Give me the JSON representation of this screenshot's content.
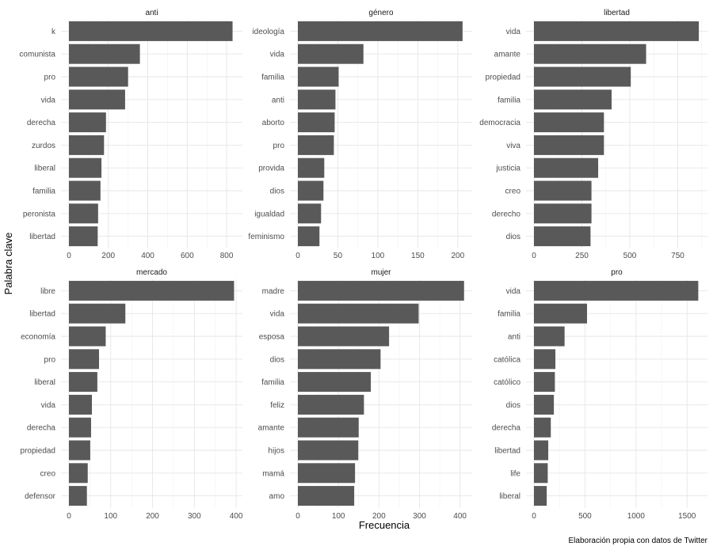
{
  "chart_data": {
    "type": "bar",
    "orientation": "horizontal",
    "xlabel": "Frecuencia",
    "ylabel": "Palabra clave",
    "caption": "Elaboración propia con datos de Twitter",
    "bar_color": "#595959",
    "grid": true,
    "facets": [
      {
        "title": "anti",
        "categories": [
          "k",
          "comunista",
          "pro",
          "vida",
          "derecha",
          "zurdos",
          "liberal",
          "familia",
          "peronista",
          "libertad"
        ],
        "values": [
          830,
          360,
          300,
          285,
          188,
          178,
          165,
          160,
          148,
          146
        ],
        "xlim": [
          0,
          880
        ],
        "xticks": [
          0,
          200,
          400,
          600,
          800
        ]
      },
      {
        "title": "género",
        "categories": [
          "ideología",
          "vida",
          "familia",
          "anti",
          "aborto",
          "pro",
          "provida",
          "dios",
          "igualdad",
          "feminismo"
        ],
        "values": [
          206,
          82,
          51,
          47,
          46,
          45,
          33,
          32,
          29,
          27
        ],
        "xlim": [
          0,
          218
        ],
        "xticks": [
          0,
          50,
          100,
          150,
          200
        ]
      },
      {
        "title": "libertad",
        "categories": [
          "vida",
          "amante",
          "propiedad",
          "familia",
          "democracia",
          "viva",
          "justicia",
          "creo",
          "derecho",
          "dios"
        ],
        "values": [
          860,
          585,
          505,
          405,
          365,
          365,
          335,
          300,
          300,
          295
        ],
        "xlim": [
          0,
          905
        ],
        "xticks": [
          0,
          250,
          500,
          750
        ]
      },
      {
        "title": "mercado",
        "categories": [
          "libre",
          "libertad",
          "economía",
          "pro",
          "liberal",
          "vida",
          "derecha",
          "propiedad",
          "creo",
          "defensor"
        ],
        "values": [
          395,
          135,
          88,
          72,
          68,
          55,
          53,
          51,
          45,
          43
        ],
        "xlim": [
          0,
          415
        ],
        "xticks": [
          0,
          100,
          200,
          300,
          400
        ]
      },
      {
        "title": "mujer",
        "categories": [
          "madre",
          "vida",
          "esposa",
          "dios",
          "familia",
          "feliz",
          "amante",
          "hijos",
          "mamá",
          "amo"
        ],
        "values": [
          410,
          298,
          225,
          204,
          180,
          163,
          150,
          149,
          141,
          139
        ],
        "xlim": [
          0,
          430
        ],
        "xticks": [
          0,
          100,
          200,
          300,
          400
        ]
      },
      {
        "title": "pro",
        "categories": [
          "vida",
          "familia",
          "anti",
          "católica",
          "católico",
          "dios",
          "derecha",
          "libertad",
          "life",
          "liberal"
        ],
        "values": [
          1610,
          520,
          300,
          210,
          205,
          195,
          165,
          140,
          135,
          125
        ],
        "xlim": [
          0,
          1700
        ],
        "xticks": [
          0,
          500,
          1000,
          1500
        ]
      }
    ]
  }
}
